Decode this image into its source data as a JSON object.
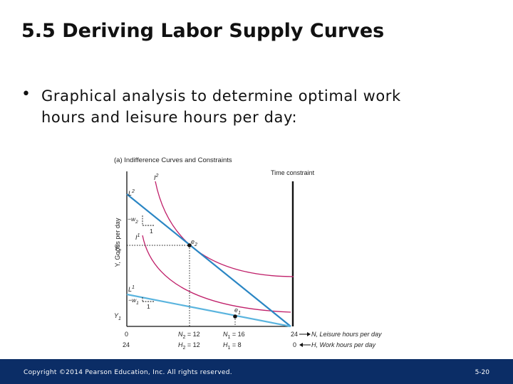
{
  "slide": {
    "title": "5.5 Deriving Labor Supply Curves",
    "bullet_symbol": "•",
    "bullet_line1": "Graphical analysis to determine optimal work",
    "bullet_line2": "hours and leisure hours per day:"
  },
  "diagram": {
    "panel_title": "(a) Indifference Curves and Constraints",
    "y_axis_label": "Y, Goods per day",
    "time_constraint_label": "Time constraint",
    "curve_I2": "I",
    "curve_I2_sup": "2",
    "curve_I1": "I",
    "curve_I1_sup": "1",
    "budget_L2": "L",
    "budget_L2_sup": "2",
    "budget_L1": "L",
    "budget_L1_sup": "1",
    "slope_w2": "−w",
    "slope_w2_sub": "2",
    "slope_w1": "−w",
    "slope_w1_sub": "1",
    "slope_run_1": "1",
    "slope_run_2": "1",
    "point_e2": "e",
    "point_e2_sub": "2",
    "point_e1": "e",
    "point_e1_sub": "1",
    "y2_label": "Y",
    "y2_sub": "2",
    "y1_label": "Y",
    "y1_sub": "1",
    "n_origin": "0",
    "h_origin": "24",
    "n2_label": "N",
    "n2_sub": "2",
    "n2_value": " = 12",
    "h2_label": "H",
    "h2_sub": "2",
    "h2_value": " = 12",
    "n1_label": "N",
    "n1_sub": "1",
    "n1_value": " = 16",
    "h1_label": "H",
    "h1_sub": "1",
    "h1_value": " = 8",
    "n_end": "24",
    "n_axis_label": "N, Leisure hours per day",
    "h_end": "0",
    "h_axis_label": "H, Work hours per day",
    "colors": {
      "indifference": "#c0206a",
      "budget_L2": "#2a86c4",
      "budget_L1": "#5ab4de",
      "axis": "#111111"
    }
  },
  "footer": {
    "copyright": "Copyright ©2014 Pearson Education, Inc. All rights reserved.",
    "slide_number": "5-20"
  }
}
